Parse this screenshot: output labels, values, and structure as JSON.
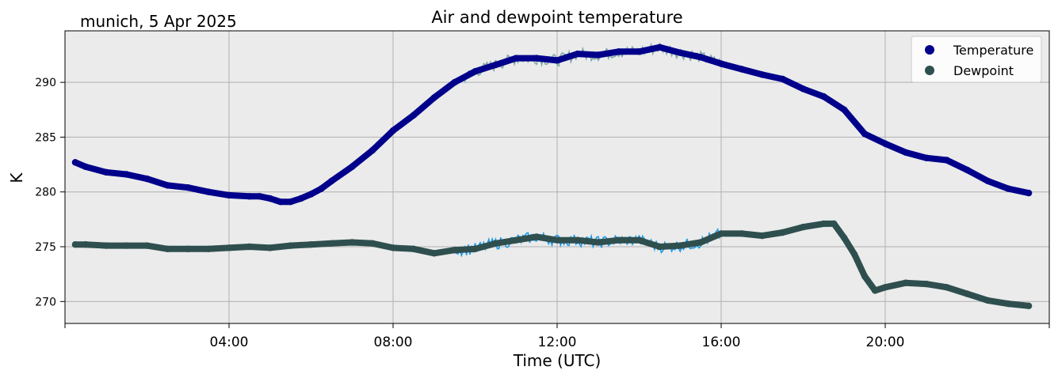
{
  "header": {
    "location_date": "munich, 5 Apr 2025"
  },
  "chart_data": {
    "type": "line",
    "title": "Air and dewpoint temperature",
    "xlabel": "Time (UTC)",
    "ylabel": "K",
    "xlim": [
      0,
      24
    ],
    "ylim": [
      268,
      294.7
    ],
    "grid": true,
    "plot_background": "#ebebeb",
    "legend_position": "top-right",
    "x_ticks": [
      {
        "value": 4,
        "label": "04:00"
      },
      {
        "value": 8,
        "label": "08:00"
      },
      {
        "value": 12,
        "label": "12:00"
      },
      {
        "value": 16,
        "label": "16:00"
      },
      {
        "value": 20,
        "label": "20:00"
      }
    ],
    "y_ticks": [
      {
        "value": 270,
        "label": "270"
      },
      {
        "value": 275,
        "label": "275"
      },
      {
        "value": 280,
        "label": "280"
      },
      {
        "value": 285,
        "label": "285"
      },
      {
        "value": 290,
        "label": "290"
      }
    ],
    "series": [
      {
        "name": "Temperature",
        "color": "#00008b",
        "raw_color": "#7fa8a8",
        "x": [
          0.25,
          0.5,
          1.0,
          1.5,
          2.0,
          2.5,
          3.0,
          3.5,
          4.0,
          4.5,
          4.75,
          5.0,
          5.25,
          5.5,
          5.75,
          6.0,
          6.25,
          6.5,
          7.0,
          7.5,
          8.0,
          8.5,
          9.0,
          9.5,
          10.0,
          10.5,
          11.0,
          11.5,
          12.0,
          12.5,
          13.0,
          13.5,
          14.0,
          14.5,
          15.0,
          15.5,
          16.0,
          16.5,
          17.0,
          17.5,
          18.0,
          18.5,
          19.0,
          19.5,
          20.0,
          20.5,
          21.0,
          21.5,
          22.0,
          22.5,
          23.0,
          23.5
        ],
        "values": [
          282.7,
          282.3,
          281.8,
          281.6,
          281.2,
          280.6,
          280.4,
          280.0,
          279.7,
          279.6,
          279.6,
          279.4,
          279.1,
          279.1,
          279.4,
          279.8,
          280.3,
          281.0,
          282.3,
          283.8,
          285.6,
          287.0,
          288.6,
          290.0,
          291.0,
          291.6,
          292.2,
          292.2,
          292.0,
          292.6,
          292.5,
          292.8,
          292.8,
          293.2,
          292.7,
          292.3,
          291.7,
          291.2,
          290.7,
          290.3,
          289.4,
          288.7,
          287.5,
          285.3,
          284.4,
          283.6,
          283.1,
          282.9,
          282.0,
          281.0,
          280.3,
          279.9
        ]
      },
      {
        "name": "Dewpoint",
        "color": "#2f4f4f",
        "raw_color": "#1e9be8",
        "x": [
          0.25,
          0.5,
          1.0,
          1.5,
          2.0,
          2.5,
          3.0,
          3.5,
          4.0,
          4.5,
          5.0,
          5.5,
          6.0,
          6.5,
          7.0,
          7.5,
          8.0,
          8.5,
          9.0,
          9.5,
          10.0,
          10.5,
          11.0,
          11.5,
          12.0,
          12.5,
          13.0,
          13.5,
          14.0,
          14.5,
          15.0,
          15.5,
          16.0,
          16.5,
          17.0,
          17.5,
          18.0,
          18.5,
          18.75,
          19.0,
          19.25,
          19.5,
          19.75,
          20.0,
          20.5,
          21.0,
          21.5,
          22.0,
          22.5,
          23.0,
          23.5
        ],
        "values": [
          275.2,
          275.2,
          275.1,
          275.1,
          275.1,
          274.8,
          274.8,
          274.8,
          274.9,
          275.0,
          274.9,
          275.1,
          275.2,
          275.3,
          275.4,
          275.3,
          274.9,
          274.8,
          274.4,
          274.7,
          274.8,
          275.3,
          275.6,
          275.9,
          275.6,
          275.6,
          275.4,
          275.6,
          275.6,
          275.0,
          275.1,
          275.4,
          276.2,
          276.2,
          276.0,
          276.3,
          276.8,
          277.1,
          277.1,
          275.8,
          274.3,
          272.3,
          271.0,
          271.3,
          271.7,
          271.6,
          271.3,
          270.7,
          270.1,
          269.8,
          269.6
        ]
      }
    ]
  }
}
